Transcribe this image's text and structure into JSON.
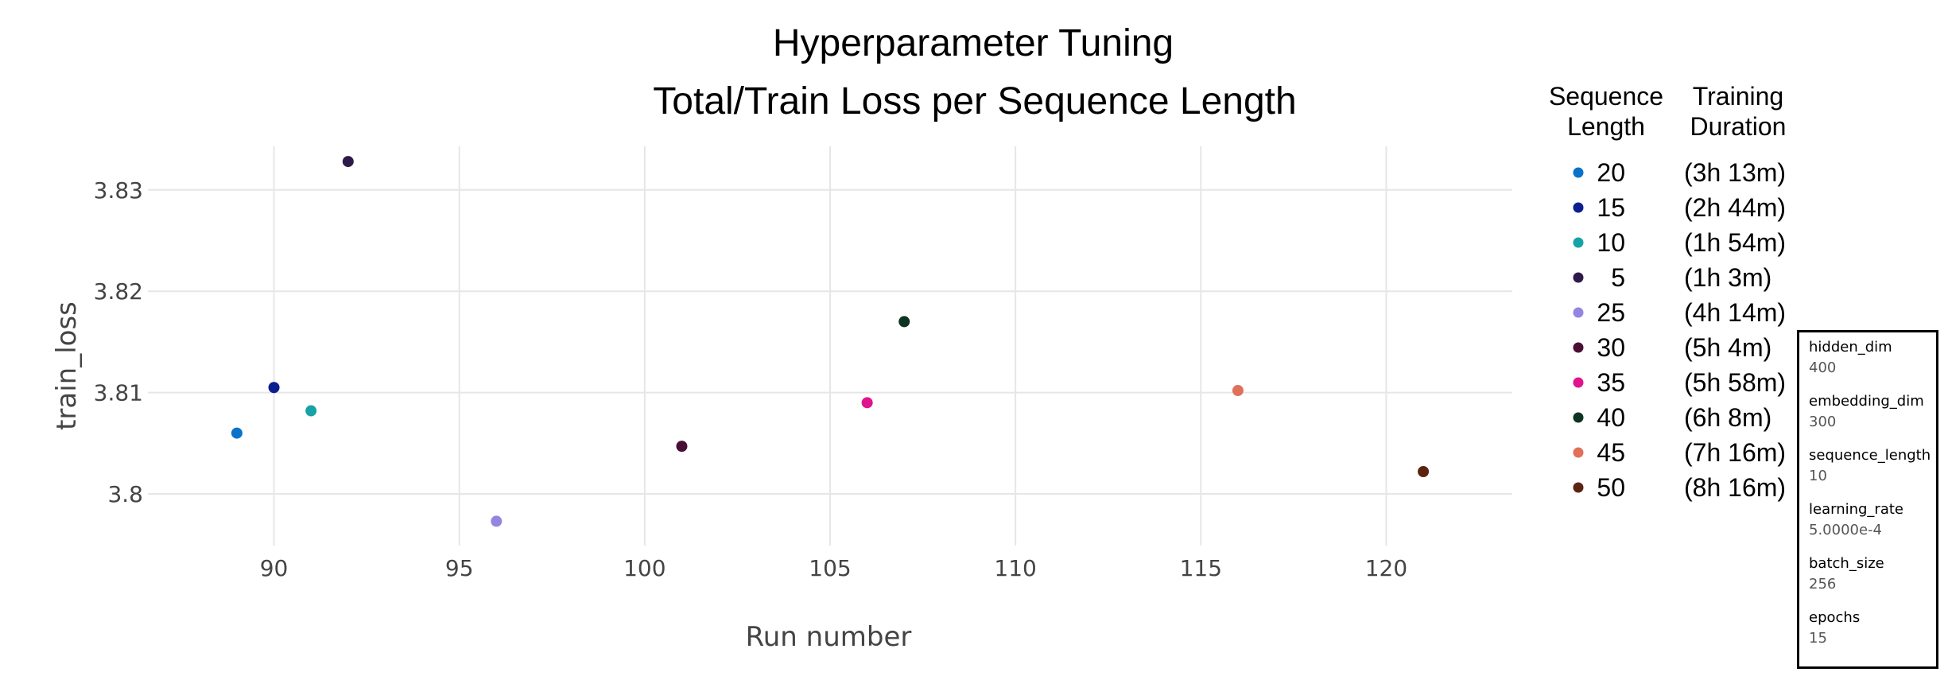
{
  "chart_data": {
    "type": "scatter",
    "title": "Hyperparameter Tuning",
    "subtitle": "Total/Train Loss per Sequence Length",
    "xlabel": "Run number",
    "ylabel": "train_loss",
    "xlim": [
      86.6,
      123.4
    ],
    "ylim": [
      3.7949,
      3.8343
    ],
    "x_ticks": [
      90,
      95,
      100,
      105,
      110,
      115,
      120
    ],
    "y_ticks": [
      3.8,
      3.81,
      3.82,
      3.83
    ],
    "y_tick_labels": [
      "3.8",
      "3.81",
      "3.82",
      "3.83"
    ],
    "grid": true,
    "legend": {
      "placement": "right",
      "header_col1": [
        "Sequence",
        "Length"
      ],
      "header_col2": [
        "Training",
        "Duration"
      ]
    },
    "series": [
      {
        "name": "20",
        "duration": "(3h 13m)",
        "color": "#0a72c8",
        "x": [
          89
        ],
        "y": [
          3.806
        ]
      },
      {
        "name": "15",
        "duration": "(2h 44m)",
        "color": "#0b1f8f",
        "x": [
          90
        ],
        "y": [
          3.8105
        ]
      },
      {
        "name": "10",
        "duration": "(1h 54m)",
        "color": "#16a2a6",
        "x": [
          91
        ],
        "y": [
          3.8082
        ]
      },
      {
        "name": "5",
        "duration": "(1h 3m)",
        "color": "#2e1a4a",
        "x": [
          92
        ],
        "y": [
          3.8328
        ]
      },
      {
        "name": "25",
        "duration": "(4h 14m)",
        "color": "#9486e0",
        "x": [
          96
        ],
        "y": [
          3.7973
        ]
      },
      {
        "name": "30",
        "duration": "(5h 4m)",
        "color": "#4a0f36",
        "x": [
          101
        ],
        "y": [
          3.8047
        ]
      },
      {
        "name": "35",
        "duration": "(5h 58m)",
        "color": "#e0148c",
        "x": [
          106
        ],
        "y": [
          3.809
        ]
      },
      {
        "name": "40",
        "duration": "(6h 8m)",
        "color": "#0e3320",
        "x": [
          107
        ],
        "y": [
          3.817
        ]
      },
      {
        "name": "45",
        "duration": "(7h 16m)",
        "color": "#e0705a",
        "x": [
          116
        ],
        "y": [
          3.8102
        ]
      },
      {
        "name": "50",
        "duration": "(8h 16m)",
        "color": "#5a2410",
        "x": [
          121
        ],
        "y": [
          3.8022
        ]
      }
    ]
  },
  "params": [
    {
      "name": "hidden_dim",
      "value": "400"
    },
    {
      "name": "embedding_dim",
      "value": "300"
    },
    {
      "name": "sequence_length",
      "value": "10"
    },
    {
      "name": "learning_rate",
      "value": "5.0000e-4"
    },
    {
      "name": "batch_size",
      "value": "256"
    },
    {
      "name": "epochs",
      "value": "15"
    }
  ]
}
